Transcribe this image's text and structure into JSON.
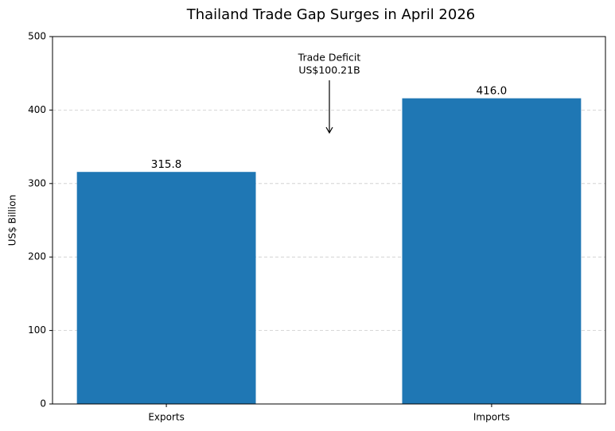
{
  "chart_data": {
    "type": "bar",
    "title": "Thailand Trade Gap Surges in April 2026",
    "y_label": "US$ Billion",
    "categories": [
      "Exports",
      "Imports"
    ],
    "values": [
      315.8,
      416.0
    ],
    "value_labels": [
      "315.8",
      "416.0"
    ],
    "color": "#1f77b4",
    "ylim": [
      0,
      500
    ],
    "yticks": [
      0,
      100,
      200,
      300,
      400,
      500
    ],
    "grid": true,
    "annotation": [
      "Trade Deficit",
      "US$100.21B"
    ]
  }
}
